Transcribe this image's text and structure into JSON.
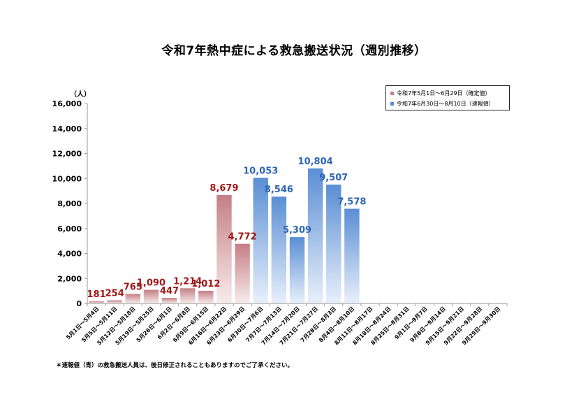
{
  "title": "令和7年熱中症による救急搬送状況（週別推移）",
  "footnote": "＊速報値（青）の救急搬送人員は、後日修正されることもありますのでご了承ください。",
  "colors": {
    "confirmed_top": "#c47f84",
    "confirmed_bottom": "#f8ecec",
    "preliminary_top": "#5a8ed4",
    "preliminary_bottom": "#e8f0fb",
    "confirmed_label": "#a01818",
    "preliminary_label": "#2e66b5",
    "axis": "#999999"
  },
  "chart_data": {
    "type": "bar",
    "ylabel": "（人）",
    "ylim": [
      0,
      16000
    ],
    "yticks": [
      "0",
      "2,000",
      "4,000",
      "6,000",
      "8,000",
      "10,000",
      "12,000",
      "14,000",
      "16,000"
    ],
    "categories": [
      "5月1日～5月4日",
      "5月5日～5月11日",
      "5月12日～5月18日",
      "5月19日～5月25日",
      "5月26日～6月1日",
      "6月2日～6月8日",
      "6月9日～6月15日",
      "6月16日～6月22日",
      "6月23日～6月29日",
      "6月30日～7月6日",
      "7月7日～7月13日",
      "7月14日～7月20日",
      "7月21日～7月27日",
      "7月28日～8月3日",
      "8月4日～8月10日",
      "8月11日～8月17日",
      "8月18日～8月24日",
      "8月25日～8月31日",
      "9月1日～9月7日",
      "9月8日～9月14日",
      "9月15日～9月21日",
      "9月22日～9月28日",
      "9月29日～9月30日"
    ],
    "series": [
      {
        "name": "令和7年5月1日～6月29日（確定値）",
        "values": [
          181,
          254,
          765,
          1090,
          447,
          1214,
          1012,
          8679,
          4772,
          null,
          null,
          null,
          null,
          null,
          null,
          null,
          null,
          null,
          null,
          null,
          null,
          null,
          null
        ],
        "labels": [
          "181",
          "254",
          "765",
          "1,090",
          "447",
          "1,214",
          "1,012",
          "8,679",
          "4,772",
          null,
          null,
          null,
          null,
          null,
          null,
          null,
          null,
          null,
          null,
          null,
          null,
          null,
          null
        ]
      },
      {
        "name": "令和7年6月30日～8月10日（速報値）",
        "values": [
          null,
          null,
          null,
          null,
          null,
          null,
          null,
          null,
          null,
          10053,
          8546,
          5309,
          10804,
          9507,
          7578,
          null,
          null,
          null,
          null,
          null,
          null,
          null,
          null
        ],
        "labels": [
          null,
          null,
          null,
          null,
          null,
          null,
          null,
          null,
          null,
          "10,053",
          "8,546",
          "5,309",
          "10,804",
          "9,507",
          "7,578",
          null,
          null,
          null,
          null,
          null,
          null,
          null,
          null
        ]
      }
    ],
    "legend_position": "top-right",
    "grid": false
  }
}
